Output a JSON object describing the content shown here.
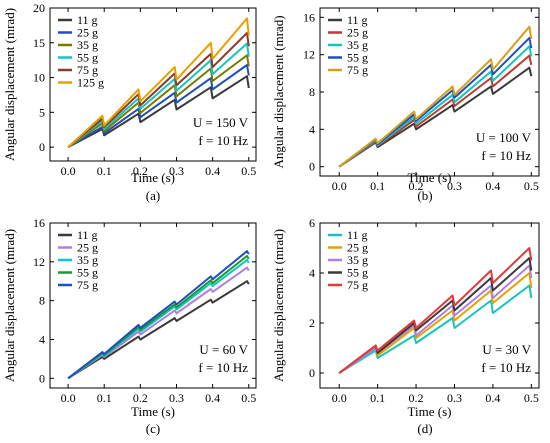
{
  "chart_data": [
    {
      "type": "line",
      "caption": "(a)",
      "xlabel": "Time (s)",
      "ylabel": "Angular displacement (mrad)",
      "xlim": [
        -0.05,
        0.52
      ],
      "ylim": [
        -2,
        20
      ],
      "xticks": [
        0.0,
        0.1,
        0.2,
        0.3,
        0.4,
        0.5
      ],
      "xtick_labels": [
        "0.0",
        "0.1",
        "0.2",
        "0.3",
        "0.4",
        "0.5"
      ],
      "yticks": [
        0,
        5,
        10,
        15,
        20
      ],
      "ytick_labels": [
        "0",
        "5",
        "10",
        "15",
        "20"
      ],
      "annotation": {
        "voltage": "U = 150 V",
        "frequency": "f = 10 Hz"
      },
      "legend_position": "top-left",
      "series": [
        {
          "name": "11 g",
          "color": "#3a3a3a",
          "peak_values": [
            2.6,
            4.8,
            6.8,
            8.6,
            10.2
          ],
          "trough_values": [
            1.7,
            3.6,
            5.4,
            7.0,
            8.5
          ]
        },
        {
          "name": "25 g",
          "color": "#1f4fbf",
          "peak_values": [
            2.9,
            5.5,
            7.8,
            9.9,
            11.8
          ],
          "trough_values": [
            2.0,
            4.3,
            6.4,
            8.3,
            10.3
          ]
        },
        {
          "name": "35 g",
          "color": "#7a7a00",
          "peak_values": [
            3.4,
            6.4,
            8.9,
            11.3,
            13.2
          ],
          "trough_values": [
            2.3,
            4.9,
            7.3,
            9.5,
            11.6
          ]
        },
        {
          "name": "55 g",
          "color": "#16c3c3",
          "peak_values": [
            3.8,
            7.0,
            9.8,
            12.5,
            14.9
          ],
          "trough_values": [
            2.6,
            5.5,
            8.1,
            10.5,
            13.0
          ]
        },
        {
          "name": "75 g",
          "color": "#8b3a2a",
          "peak_values": [
            4.1,
            7.6,
            10.6,
            13.4,
            16.4
          ],
          "trough_values": [
            2.9,
            6.0,
            8.9,
            11.5,
            14.5
          ]
        },
        {
          "name": "125 g",
          "color": "#e6a000",
          "peak_values": [
            4.5,
            8.3,
            11.5,
            15.0,
            18.5
          ],
          "trough_values": [
            3.1,
            6.6,
            9.7,
            12.7,
            16.0
          ]
        }
      ]
    },
    {
      "type": "line",
      "caption": "(b)",
      "xlabel": "Time (s)",
      "ylabel": "Angular displacement (mrad)",
      "xlim": [
        -0.05,
        0.52
      ],
      "ylim": [
        -1,
        17
      ],
      "xticks": [
        0.0,
        0.1,
        0.2,
        0.3,
        0.4,
        0.5
      ],
      "xtick_labels": [
        "0.0",
        "0.1",
        "0.2",
        "0.3",
        "0.4",
        "0.5"
      ],
      "yticks": [
        0,
        4,
        8,
        12,
        16
      ],
      "ytick_labels": [
        "0",
        "4",
        "8",
        "12",
        "16"
      ],
      "annotation": {
        "voltage": "U = 100 V",
        "frequency": "f = 10 Hz"
      },
      "legend_position": "top-left",
      "series": [
        {
          "name": "11 g",
          "color": "#3a3a3a",
          "peak_values": [
            2.6,
            4.6,
            6.6,
            8.6,
            10.6
          ],
          "trough_values": [
            2.1,
            4.0,
            5.9,
            7.8,
            9.7
          ]
        },
        {
          "name": "25 g",
          "color": "#c0392b",
          "peak_values": [
            2.7,
            5.0,
            7.2,
            9.5,
            11.9
          ],
          "trough_values": [
            2.2,
            4.3,
            6.5,
            8.6,
            10.9
          ]
        },
        {
          "name": "35 g",
          "color": "#16c3c3",
          "peak_values": [
            2.8,
            5.3,
            7.7,
            10.2,
            12.9
          ],
          "trough_values": [
            2.3,
            4.6,
            6.9,
            9.2,
            11.8
          ]
        },
        {
          "name": "55 g",
          "color": "#1f4fbf",
          "peak_values": [
            2.9,
            5.6,
            8.2,
            10.9,
            13.8
          ],
          "trough_values": [
            2.4,
            4.9,
            7.4,
            9.9,
            12.7
          ]
        },
        {
          "name": "75 g",
          "color": "#d4a017",
          "peak_values": [
            3.0,
            5.9,
            8.6,
            11.5,
            15.0
          ],
          "trough_values": [
            2.5,
            5.1,
            7.7,
            10.4,
            13.7
          ]
        }
      ]
    },
    {
      "type": "line",
      "caption": "(c)",
      "xlabel": "Time (s)",
      "ylabel": "Angular displacement (mrad)",
      "xlim": [
        -0.05,
        0.52
      ],
      "ylim": [
        -1,
        16
      ],
      "xticks": [
        0.0,
        0.1,
        0.2,
        0.3,
        0.4,
        0.5
      ],
      "xtick_labels": [
        "0.0",
        "0.1",
        "0.2",
        "0.3",
        "0.4",
        "0.5"
      ],
      "yticks": [
        0,
        4,
        8,
        12,
        16
      ],
      "ytick_labels": [
        "0",
        "4",
        "8",
        "12",
        "16"
      ],
      "annotation": {
        "voltage": "U = 60 V",
        "frequency": "f = 10 Hz"
      },
      "legend_position": "top-left",
      "series": [
        {
          "name": "11 g",
          "color": "#3a3a3a",
          "peak_values": [
            2.2,
            4.3,
            6.2,
            8.1,
            10.0
          ],
          "trough_values": [
            2.0,
            4.0,
            5.9,
            7.8,
            9.7
          ]
        },
        {
          "name": "25 g",
          "color": "#b07fe0",
          "peak_values": [
            2.4,
            4.8,
            7.0,
            9.2,
            11.4
          ],
          "trough_values": [
            2.2,
            4.5,
            6.7,
            8.9,
            11.1
          ]
        },
        {
          "name": "35 g",
          "color": "#16c3c3",
          "peak_values": [
            2.5,
            5.1,
            7.4,
            9.8,
            12.2
          ],
          "trough_values": [
            2.3,
            4.8,
            7.1,
            9.5,
            11.9
          ]
        },
        {
          "name": "55 g",
          "color": "#1a9a30",
          "peak_values": [
            2.6,
            5.3,
            7.6,
            10.1,
            12.6
          ],
          "trough_values": [
            2.4,
            5.0,
            7.3,
            9.8,
            12.3
          ]
        },
        {
          "name": "75 g",
          "color": "#1f4fbf",
          "peak_values": [
            2.7,
            5.5,
            7.9,
            10.5,
            13.1
          ],
          "trough_values": [
            2.5,
            5.2,
            7.6,
            10.2,
            12.8
          ]
        }
      ]
    },
    {
      "type": "line",
      "caption": "(d)",
      "xlabel": "Time (s)",
      "ylabel": "Angular displacement (mrad)",
      "xlim": [
        -0.05,
        0.52
      ],
      "ylim": [
        -0.6,
        6
      ],
      "xticks": [
        0.0,
        0.1,
        0.2,
        0.3,
        0.4,
        0.5
      ],
      "xtick_labels": [
        "0.0",
        "0.1",
        "0.2",
        "0.3",
        "0.4",
        "0.5"
      ],
      "yticks": [
        0,
        2,
        4,
        6
      ],
      "ytick_labels": [
        "0",
        "2",
        "4",
        "6"
      ],
      "annotation": {
        "voltage": "U = 30 V",
        "frequency": "f = 10 Hz"
      },
      "legend_position": "top-left",
      "series": [
        {
          "name": "11 g",
          "color": "#16c3c3",
          "peak_values": [
            0.9,
            1.5,
            2.2,
            2.9,
            3.5
          ],
          "trough_values": [
            0.6,
            1.2,
            1.8,
            2.4,
            3.0
          ]
        },
        {
          "name": "25 g",
          "color": "#e6a000",
          "peak_values": [
            1.0,
            1.8,
            2.5,
            3.3,
            4.0
          ],
          "trough_values": [
            0.7,
            1.4,
            2.1,
            2.8,
            3.4
          ]
        },
        {
          "name": "35 g",
          "color": "#b07fe0",
          "peak_values": [
            1.0,
            1.9,
            2.7,
            3.5,
            4.3
          ],
          "trough_values": [
            0.8,
            1.5,
            2.3,
            3.0,
            3.8
          ]
        },
        {
          "name": "55 g",
          "color": "#3a3a3a",
          "peak_values": [
            1.1,
            2.0,
            2.9,
            3.8,
            4.6
          ],
          "trough_values": [
            0.8,
            1.7,
            2.5,
            3.3,
            4.1
          ]
        },
        {
          "name": "75 g",
          "color": "#e33b3b",
          "peak_values": [
            1.1,
            2.1,
            3.1,
            4.1,
            5.0
          ],
          "trough_values": [
            0.9,
            1.8,
            2.7,
            3.6,
            4.5
          ]
        }
      ]
    }
  ]
}
